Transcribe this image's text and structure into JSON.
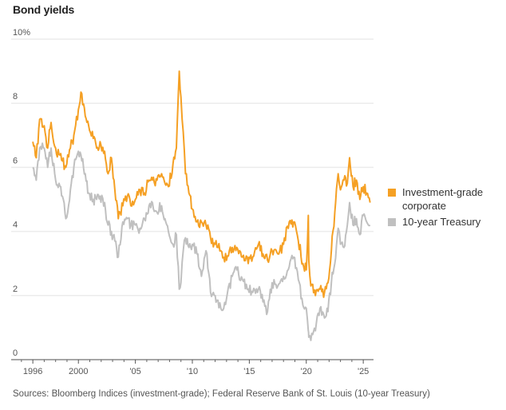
{
  "title": "Bond yields",
  "source": "Sources: Bloomberg Indices (investment-grade); Federal Reserve Bank of St. Louis (10-year Treasury)",
  "colors": {
    "corporate": "#f5a024",
    "treasury": "#c0c0c0",
    "grid": "#ececec",
    "axis": "#888888"
  },
  "legend": [
    {
      "label_line1": "Investment-grade",
      "label_line2": "corporate",
      "color": "#f5a024"
    },
    {
      "label_line1": "10-year Treasury",
      "label_line2": "",
      "color": "#c0c0c0"
    }
  ],
  "chart_data": {
    "type": "line",
    "title": "Bond yields",
    "xlabel": "",
    "ylabel": "%",
    "ylim": [
      0,
      10
    ],
    "xlim": [
      1994.1,
      2025.9
    ],
    "grid": true,
    "legend_position": "right",
    "y_ticks": [
      {
        "value": 0,
        "label": "0"
      },
      {
        "value": 2,
        "label": "2"
      },
      {
        "value": 4,
        "label": "4"
      },
      {
        "value": 6,
        "label": "6"
      },
      {
        "value": 8,
        "label": "8"
      },
      {
        "value": 10,
        "label": "10%"
      }
    ],
    "x_ticks": [
      {
        "value": 1996,
        "label": "1996"
      },
      {
        "value": 2000,
        "label": "2000"
      },
      {
        "value": 2005,
        "label": "'05"
      },
      {
        "value": 2010,
        "label": "'10"
      },
      {
        "value": 2015,
        "label": "'15"
      },
      {
        "value": 2020,
        "label": "'20"
      },
      {
        "value": 2025,
        "label": "'25"
      }
    ],
    "x_minor_ticks": [
      1995,
      1997,
      1998,
      1999,
      2001,
      2002,
      2003,
      2004,
      2006,
      2007,
      2008,
      2009,
      2011,
      2012,
      2013,
      2014,
      2016,
      2017,
      2018,
      2019,
      2021,
      2022,
      2023,
      2024
    ],
    "series": [
      {
        "name": "Investment-grade corporate",
        "color": "#f5a024",
        "x": [
          1996.0,
          1996.3,
          1996.6,
          1997.0,
          1997.3,
          1997.6,
          1998.0,
          1998.3,
          1998.6,
          1998.9,
          1999.3,
          1999.6,
          2000.0,
          2000.3,
          2000.6,
          2000.9,
          2001.3,
          2001.6,
          2001.9,
          2002.3,
          2002.6,
          2002.9,
          2003.2,
          2003.5,
          2003.9,
          2004.3,
          2004.6,
          2005.0,
          2005.4,
          2005.8,
          2006.2,
          2006.5,
          2006.9,
          2007.3,
          2007.6,
          2007.9,
          2008.3,
          2008.6,
          2008.85,
          2009.0,
          2009.2,
          2009.4,
          2009.7,
          2010.0,
          2010.4,
          2010.8,
          2011.2,
          2011.6,
          2012.0,
          2012.5,
          2013.0,
          2013.5,
          2013.9,
          2014.4,
          2014.9,
          2015.3,
          2015.8,
          2016.2,
          2016.6,
          2017.0,
          2017.5,
          2018.0,
          2018.5,
          2018.9,
          2019.3,
          2019.7,
          2020.0,
          2020.18,
          2020.22,
          2020.4,
          2020.8,
          2021.2,
          2021.6,
          2021.9,
          2022.2,
          2022.5,
          2022.8,
          2023.0,
          2023.3,
          2023.6,
          2023.8,
          2024.1,
          2024.4,
          2024.7,
          2025.0,
          2025.3,
          2025.6
        ],
        "values": [
          6.8,
          6.3,
          7.5,
          7.3,
          6.6,
          7.4,
          6.6,
          6.4,
          6.2,
          6.0,
          6.6,
          7.0,
          7.8,
          8.3,
          7.6,
          7.3,
          6.9,
          6.6,
          6.8,
          6.5,
          5.8,
          6.3,
          5.3,
          4.4,
          4.8,
          5.1,
          4.8,
          5.0,
          5.3,
          5.2,
          5.6,
          5.6,
          5.6,
          5.8,
          5.5,
          5.4,
          6.1,
          6.6,
          9.0,
          8.2,
          7.1,
          5.8,
          5.2,
          4.7,
          4.3,
          4.3,
          4.2,
          3.8,
          3.6,
          3.4,
          3.1,
          3.5,
          3.5,
          3.2,
          3.0,
          3.2,
          3.6,
          3.3,
          3.1,
          3.4,
          3.3,
          3.6,
          4.3,
          4.3,
          3.7,
          3.0,
          2.8,
          4.5,
          3.1,
          2.3,
          2.0,
          2.2,
          2.1,
          2.4,
          3.4,
          4.6,
          5.8,
          5.3,
          5.6,
          5.5,
          6.3,
          5.4,
          5.6,
          5.0,
          5.4,
          5.2,
          4.9
        ]
      },
      {
        "name": "10-year Treasury",
        "color": "#c0c0c0",
        "x": [
          1996.0,
          1996.3,
          1996.6,
          1997.0,
          1997.3,
          1997.6,
          1998.0,
          1998.3,
          1998.6,
          1998.9,
          1999.3,
          1999.6,
          2000.0,
          2000.3,
          2000.6,
          2000.9,
          2001.3,
          2001.6,
          2001.9,
          2002.3,
          2002.6,
          2002.9,
          2003.2,
          2003.5,
          2003.9,
          2004.3,
          2004.6,
          2005.0,
          2005.4,
          2005.8,
          2006.2,
          2006.5,
          2006.9,
          2007.3,
          2007.6,
          2007.9,
          2008.3,
          2008.6,
          2008.85,
          2009.0,
          2009.2,
          2009.4,
          2009.7,
          2010.0,
          2010.4,
          2010.8,
          2011.2,
          2011.6,
          2012.0,
          2012.5,
          2013.0,
          2013.5,
          2013.9,
          2014.4,
          2014.9,
          2015.3,
          2015.8,
          2016.2,
          2016.6,
          2017.0,
          2017.5,
          2018.0,
          2018.5,
          2018.9,
          2019.3,
          2019.7,
          2020.0,
          2020.18,
          2020.22,
          2020.4,
          2020.8,
          2021.2,
          2021.6,
          2021.9,
          2022.2,
          2022.5,
          2022.8,
          2023.0,
          2023.3,
          2023.6,
          2023.8,
          2024.1,
          2024.4,
          2024.7,
          2025.0,
          2025.3,
          2025.6
        ],
        "values": [
          6.0,
          5.6,
          6.6,
          6.6,
          6.0,
          6.6,
          5.6,
          5.5,
          5.1,
          4.4,
          5.3,
          6.0,
          6.5,
          6.2,
          5.8,
          5.2,
          5.0,
          5.0,
          5.1,
          4.9,
          4.2,
          4.0,
          3.7,
          3.2,
          4.3,
          4.4,
          4.2,
          4.2,
          4.1,
          4.4,
          4.8,
          4.9,
          4.6,
          4.8,
          4.4,
          4.0,
          3.6,
          3.9,
          2.2,
          2.4,
          3.4,
          3.8,
          3.5,
          3.6,
          3.3,
          2.6,
          3.4,
          2.1,
          2.0,
          1.6,
          1.9,
          2.6,
          2.8,
          2.5,
          2.2,
          2.1,
          2.2,
          1.8,
          1.5,
          2.4,
          2.3,
          2.6,
          2.9,
          3.2,
          2.5,
          1.7,
          1.6,
          0.9,
          0.7,
          0.6,
          0.9,
          1.6,
          1.3,
          1.5,
          2.4,
          3.0,
          4.1,
          3.6,
          3.5,
          4.2,
          4.9,
          4.2,
          4.4,
          3.9,
          4.5,
          4.3,
          4.2
        ]
      }
    ]
  }
}
